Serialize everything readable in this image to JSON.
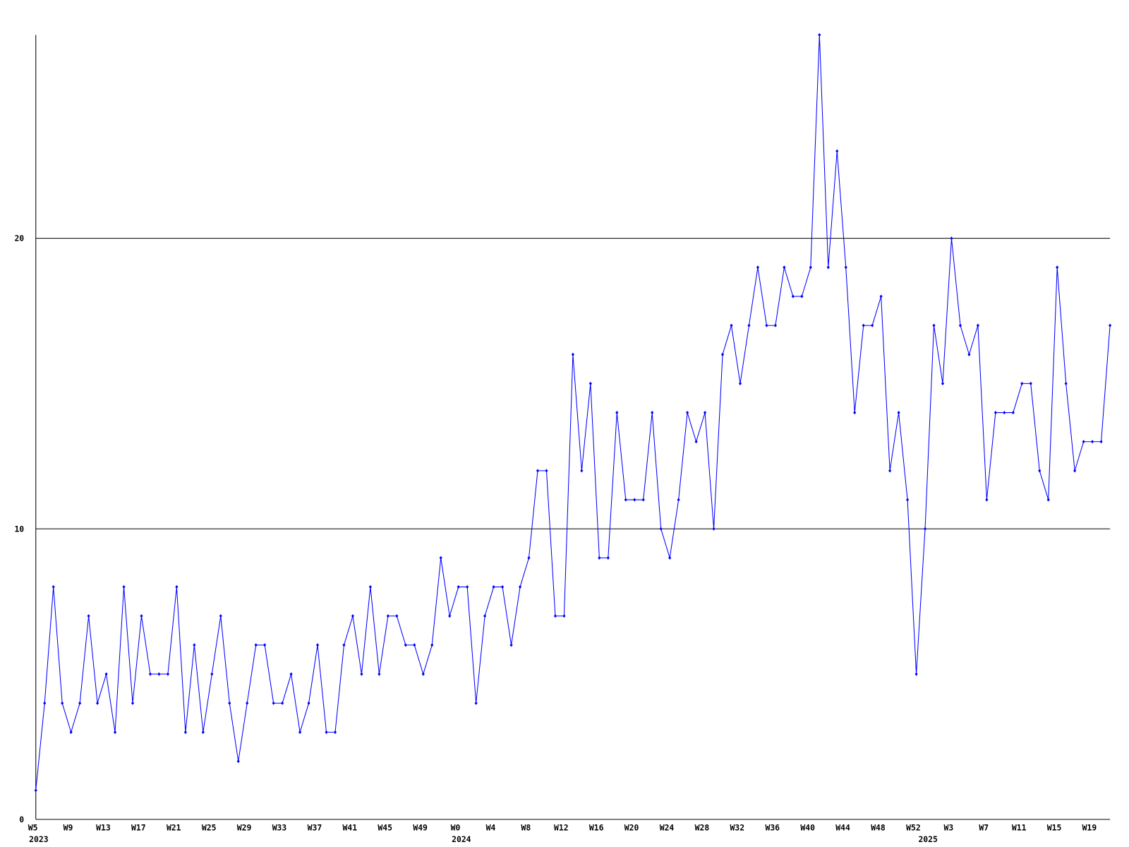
{
  "chart_data": {
    "type": "line",
    "categories": [
      "W5",
      null,
      null,
      null,
      "W9",
      null,
      null,
      null,
      "W13",
      null,
      null,
      null,
      "W17",
      null,
      null,
      null,
      "W21",
      null,
      null,
      null,
      "W25",
      null,
      null,
      null,
      "W29",
      null,
      null,
      null,
      "W33",
      null,
      null,
      null,
      "W37",
      null,
      null,
      null,
      "W41",
      null,
      null,
      null,
      "W45",
      null,
      null,
      null,
      "W49",
      null,
      null,
      null,
      "W0",
      null,
      null,
      null,
      "W4",
      null,
      null,
      null,
      "W8",
      null,
      null,
      null,
      "W12",
      null,
      null,
      null,
      "W16",
      null,
      null,
      null,
      "W20",
      null,
      null,
      null,
      "W24",
      null,
      null,
      null,
      "W28",
      null,
      null,
      null,
      "W32",
      null,
      null,
      null,
      "W36",
      null,
      null,
      null,
      "W40",
      null,
      null,
      null,
      "W44",
      null,
      null,
      null,
      "W48",
      null,
      null,
      null,
      "W52",
      null,
      null,
      null,
      "W3",
      null,
      null,
      null,
      "W7",
      null,
      null,
      null,
      "W11",
      null,
      null,
      null,
      "W15",
      null,
      null,
      null,
      "W19",
      null,
      null
    ],
    "category_groups": [
      "2023",
      null,
      null,
      null,
      null,
      null,
      null,
      null,
      null,
      null,
      null,
      null,
      null,
      null,
      null,
      null,
      null,
      null,
      null,
      null,
      null,
      null,
      null,
      null,
      null,
      null,
      null,
      null,
      null,
      null,
      null,
      null,
      null,
      null,
      null,
      null,
      null,
      null,
      null,
      null,
      null,
      null,
      null,
      null,
      null,
      null,
      null,
      null,
      "2024",
      null,
      null,
      null,
      null,
      null,
      null,
      null,
      null,
      null,
      null,
      null,
      null,
      null,
      null,
      null,
      null,
      null,
      null,
      null,
      null,
      null,
      null,
      null,
      null,
      null,
      null,
      null,
      null,
      null,
      null,
      null,
      null,
      null,
      null,
      null,
      null,
      null,
      null,
      null,
      null,
      null,
      null,
      null,
      null,
      null,
      null,
      null,
      null,
      null,
      null,
      null,
      null,
      "2025",
      null,
      null,
      null,
      null,
      null,
      null,
      null,
      null,
      null,
      null,
      null,
      null,
      null,
      null,
      null,
      null,
      null,
      null,
      null,
      null,
      null
    ],
    "series": [
      {
        "color": "#0000ff",
        "values": [
          1,
          4,
          8,
          4,
          3,
          4,
          7,
          4,
          5,
          3,
          8,
          4,
          7,
          5,
          5,
          5,
          8,
          3,
          6,
          3,
          5,
          7,
          4,
          2,
          4,
          6,
          6,
          4,
          4,
          5,
          3,
          4,
          6,
          3,
          3,
          6,
          7,
          5,
          8,
          5,
          7,
          7,
          6,
          6,
          5,
          6,
          9,
          7,
          8,
          8,
          4,
          7,
          8,
          8,
          6,
          8,
          9,
          12,
          12,
          7,
          7,
          16,
          12,
          15,
          9,
          9,
          14,
          11,
          11,
          11,
          14,
          10,
          9,
          11,
          14,
          13,
          14,
          10,
          16,
          17,
          15,
          17,
          19,
          17,
          17,
          19,
          18,
          18,
          19,
          27,
          19,
          23,
          19,
          14,
          17,
          17,
          18,
          12,
          14,
          11,
          5,
          10,
          17,
          15,
          20,
          17,
          16,
          17,
          11,
          14,
          14,
          14,
          15,
          15,
          12,
          11,
          19,
          15,
          12,
          13,
          13,
          13,
          17
        ]
      }
    ],
    "ylim": [
      0,
      27
    ],
    "yticks": [
      0,
      10,
      20
    ],
    "grid": true,
    "markers": true
  }
}
